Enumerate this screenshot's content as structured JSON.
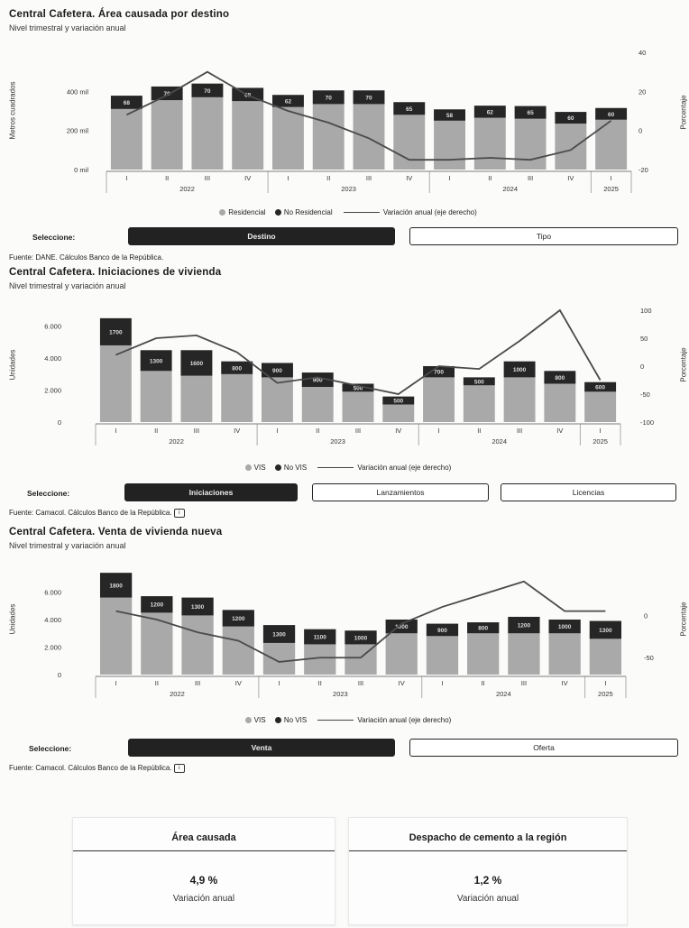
{
  "panels": [
    {
      "title": "Central Cafetera. Área causada por destino",
      "subtitle": "Nivel trimestral y variación anual",
      "ylabel_left": "Metros cuadrados",
      "ylabel_right": "Porcentaje",
      "legend": {
        "series1": "Residencial",
        "series2": "No Residencial",
        "line": "Variación anual (eje derecho)"
      },
      "selector": {
        "label": "Seleccione:",
        "options": [
          "Destino",
          "Tipo"
        ],
        "active": 0
      },
      "source": "Fuente: DANE. Cálculos Banco de la República."
    },
    {
      "title": "Central Cafetera. Iniciaciones de vivienda",
      "subtitle": "Nivel trimestral y variación anual",
      "ylabel_left": "Unidades",
      "ylabel_right": "Porcentaje",
      "legend": {
        "series1": "VIS",
        "series2": "No VIS",
        "line": "Variación anual (eje derecho)"
      },
      "selector": {
        "label": "Seleccione:",
        "options": [
          "Iniciaciones",
          "Lanzamientos",
          "Licencias"
        ],
        "active": 0
      },
      "source": "Fuente: Camacol. Cálculos Banco de la República."
    },
    {
      "title": "Central Cafetera. Venta de vivienda nueva",
      "subtitle": "Nivel trimestral y variación anual",
      "ylabel_left": "Unidades",
      "ylabel_right": "Porcentaje",
      "legend": {
        "series1": "VIS",
        "series2": "No VIS",
        "line": "Variación anual (eje derecho)"
      },
      "selector": {
        "label": "Seleccione:",
        "options": [
          "Venta",
          "Oferta"
        ],
        "active": 0
      },
      "source": "Fuente: Camacol. Cálculos Banco de la República."
    }
  ],
  "cards": [
    {
      "title": "Área causada",
      "value": "4,9 %",
      "label": "Variación anual"
    },
    {
      "title": "Despacho de cemento a la región",
      "value": "1,2 %",
      "label": "Variación anual"
    }
  ],
  "colors": {
    "series1": "#a9a9a9",
    "series2": "#262626",
    "line": "#4a4a4a",
    "active_button": "#222222"
  },
  "chart_data": [
    {
      "type": "bar",
      "stacked": true,
      "categories": [
        "I 2022",
        "II 2022",
        "III 2022",
        "IV 2022",
        "I 2023",
        "II 2023",
        "III 2023",
        "IV 2023",
        "I 2024",
        "II 2024",
        "III 2024",
        "IV 2024",
        "I 2025"
      ],
      "tick_labels": [
        "I",
        "II",
        "III",
        "IV",
        "I",
        "II",
        "III",
        "IV",
        "I",
        "II",
        "III",
        "IV",
        "I"
      ],
      "year_labels": [
        "2022",
        "2023",
        "2024",
        "2025"
      ],
      "year_spans": [
        4,
        4,
        4,
        1
      ],
      "series": [
        {
          "name": "Residencial",
          "values": [
            310,
            355,
            370,
            350,
            320,
            335,
            335,
            280,
            250,
            265,
            260,
            235,
            255
          ]
        },
        {
          "name": "No Residencial",
          "values": [
            68,
            70,
            70,
            68,
            62,
            70,
            70,
            65,
            58,
            62,
            65,
            60,
            60
          ]
        }
      ],
      "line": {
        "name": "Variación anual (eje derecho)",
        "values": [
          8,
          18,
          30,
          18,
          10,
          4,
          -4,
          -15,
          -15,
          -14,
          -15,
          -10,
          5
        ]
      },
      "y_ticks_left": [
        "0 mil",
        "200 mil",
        "400 mil"
      ],
      "y_ticks_left_values": [
        0,
        200,
        400
      ],
      "ylim_left": [
        0,
        600
      ],
      "y_ticks_right": [
        "40",
        "20",
        "0",
        "-20"
      ],
      "y_ticks_right_values": [
        40,
        20,
        0,
        -20
      ],
      "ylim_right": [
        -20,
        40
      ],
      "grid": false
    },
    {
      "type": "bar",
      "stacked": true,
      "categories": [
        "I 2022",
        "II 2022",
        "III 2022",
        "IV 2022",
        "I 2023",
        "II 2023",
        "III 2023",
        "IV 2023",
        "I 2024",
        "II 2024",
        "III 2024",
        "IV 2024",
        "I 2025"
      ],
      "tick_labels": [
        "I",
        "II",
        "III",
        "IV",
        "I",
        "II",
        "III",
        "IV",
        "I",
        "II",
        "III",
        "IV",
        "I"
      ],
      "year_labels": [
        "2022",
        "2023",
        "2024",
        "2025"
      ],
      "year_spans": [
        4,
        4,
        4,
        1
      ],
      "series": [
        {
          "name": "VIS",
          "values": [
            4800,
            3200,
            2900,
            3000,
            2800,
            2200,
            1900,
            1100,
            2800,
            2300,
            2800,
            2400,
            1900
          ]
        },
        {
          "name": "No VIS",
          "values": [
            1700,
            1300,
            1600,
            800,
            900,
            900,
            500,
            500,
            700,
            500,
            1000,
            800,
            600
          ]
        }
      ],
      "line": {
        "name": "Variación anual (eje derecho)",
        "values": [
          20,
          50,
          55,
          25,
          -30,
          -20,
          -35,
          -50,
          0,
          -5,
          45,
          100,
          -25
        ]
      },
      "y_ticks_left": [
        "0",
        "2.000",
        "4.000",
        "6.000"
      ],
      "y_ticks_left_values": [
        0,
        2000,
        4000,
        6000
      ],
      "ylim_left": [
        0,
        7000
      ],
      "y_ticks_right": [
        "100",
        "50",
        "0",
        "-50",
        "-100"
      ],
      "y_ticks_right_values": [
        100,
        50,
        0,
        -50,
        -100
      ],
      "ylim_right": [
        -100,
        100
      ],
      "grid": false
    },
    {
      "type": "bar",
      "stacked": true,
      "categories": [
        "I 2022",
        "II 2022",
        "III 2022",
        "IV 2022",
        "I 2023",
        "II 2023",
        "III 2023",
        "IV 2023",
        "I 2024",
        "II 2024",
        "III 2024",
        "IV 2024",
        "I 2025"
      ],
      "tick_labels": [
        "I",
        "II",
        "III",
        "IV",
        "I",
        "II",
        "III",
        "IV",
        "I",
        "II",
        "III",
        "IV",
        "I"
      ],
      "year_labels": [
        "2022",
        "2023",
        "2024",
        "2025"
      ],
      "year_spans": [
        4,
        4,
        4,
        1
      ],
      "series": [
        {
          "name": "VIS",
          "values": [
            5600,
            4500,
            4300,
            3500,
            2300,
            2200,
            2200,
            3000,
            2800,
            3000,
            3000,
            3000,
            2600
          ]
        },
        {
          "name": "No VIS",
          "values": [
            1800,
            1200,
            1300,
            1200,
            1300,
            1100,
            1000,
            1000,
            900,
            800,
            1200,
            1000,
            1300
          ]
        }
      ],
      "line": {
        "name": "Variación anual (eje derecho)",
        "values": [
          5,
          -5,
          -20,
          -30,
          -55,
          -50,
          -50,
          -10,
          10,
          25,
          40,
          5,
          5
        ]
      },
      "y_ticks_left": [
        "0",
        "2.000",
        "4.000",
        "6.000"
      ],
      "y_ticks_left_values": [
        0,
        2000,
        4000,
        6000
      ],
      "ylim_left": [
        0,
        8000
      ],
      "y_ticks_right": [
        "0",
        "-50"
      ],
      "y_ticks_right_values": [
        0,
        -50
      ],
      "ylim_right": [
        -70,
        60
      ],
      "grid": false
    }
  ]
}
